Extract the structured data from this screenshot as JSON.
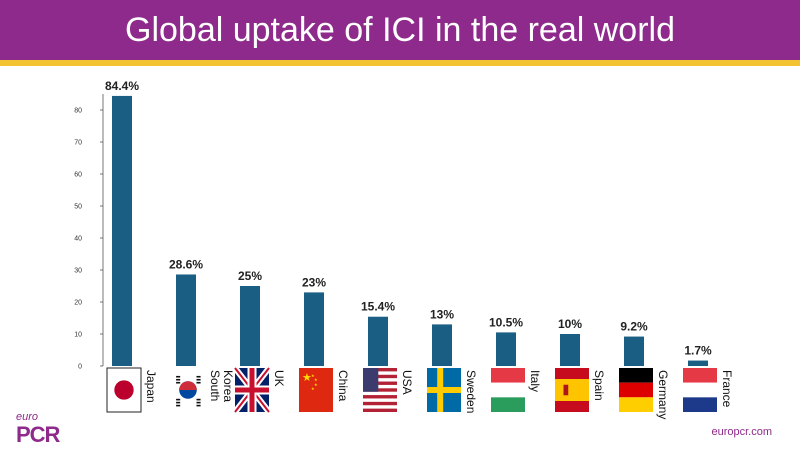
{
  "header": {
    "title": "Global uptake of ICI in the real world"
  },
  "colors": {
    "header_bg": "#8e2a8b",
    "header_rule": "#f2c230",
    "bar": "#1a5e84",
    "axis": "#555555"
  },
  "chart_data": {
    "type": "bar",
    "categories": [
      "Japan",
      "South Korea",
      "UK",
      "China",
      "USA",
      "Sweden",
      "Italy",
      "Spain",
      "Germany",
      "France"
    ],
    "category_lines": [
      [
        "Japan"
      ],
      [
        "South",
        "Korea"
      ],
      [
        "UK"
      ],
      [
        "China"
      ],
      [
        "USA"
      ],
      [
        "Sweden"
      ],
      [
        "Italy"
      ],
      [
        "Spain"
      ],
      [
        "Germany"
      ],
      [
        "France"
      ]
    ],
    "values": [
      84.4,
      28.6,
      25,
      23,
      15.4,
      13,
      10.5,
      10,
      9.2,
      1.7
    ],
    "data_labels": [
      "84.4%",
      "28.6%",
      "25%",
      "23%",
      "15.4%",
      "13%",
      "10.5%",
      "10%",
      "9.2%",
      "1.7%"
    ],
    "yticks": [
      0,
      10,
      20,
      30,
      40,
      50,
      60,
      70,
      80
    ],
    "ylim": [
      0,
      85
    ],
    "title": "",
    "xlabel": "",
    "ylabel": "",
    "grid": false,
    "flags": [
      "japan-flag",
      "south-korea-flag",
      "uk-flag",
      "china-flag",
      "usa-flag",
      "sweden-flag",
      "italy-flag",
      "spain-flag",
      "germany-flag",
      "france-flag"
    ]
  },
  "footer": {
    "logo_small": "euro",
    "logo_main": "PCR",
    "site": "europcr.com"
  }
}
